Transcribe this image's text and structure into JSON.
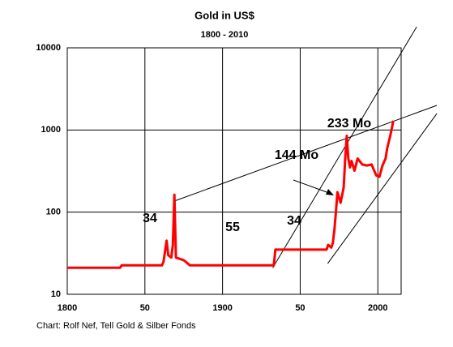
{
  "chart_data": {
    "type": "line",
    "title": "Gold in US$",
    "subtitle": "1800 - 2010",
    "source": "Chart: Rolf Nef, Tell Gold & Silber Fonds",
    "log_y": true,
    "grid": true,
    "xlim": [
      1800,
      2015
    ],
    "ylim": [
      10,
      10000
    ],
    "xticks": [
      1800,
      {
        "value": 1850,
        "label": "50"
      },
      1900,
      {
        "value": 1950,
        "label": "50"
      },
      2000
    ],
    "yticks": [
      10000,
      1000,
      100,
      10
    ],
    "x": [
      1800,
      1834,
      1835,
      1861,
      1862,
      1864,
      1865,
      1867,
      1868,
      1869,
      1870,
      1875,
      1879,
      1933,
      1934,
      1967,
      1968,
      1970,
      1971,
      1972,
      1973,
      1974,
      1976,
      1978,
      1979,
      1980,
      1981,
      1982,
      1983,
      1985,
      1987,
      1990,
      1993,
      1996,
      1999,
      2001,
      2003,
      2005,
      2006,
      2008,
      2010
    ],
    "series": [
      {
        "name": "Gold",
        "color": "#ff0000",
        "values": [
          21,
          21,
          22.5,
          22.5,
          25,
          45,
          30,
          28,
          40,
          163,
          28,
          26,
          22.5,
          22.5,
          35,
          35,
          40,
          37,
          42,
          60,
          100,
          175,
          130,
          200,
          450,
          850,
          450,
          350,
          420,
          320,
          450,
          380,
          370,
          380,
          280,
          270,
          370,
          450,
          600,
          850,
          1300
        ]
      }
    ],
    "trend_lines": [
      {
        "x": [
          1868.75,
          2038
        ],
        "y": [
          136,
          1991
        ]
      },
      {
        "x": [
          1932.3,
          2025
        ],
        "y": [
          21,
          18000
        ]
      },
      {
        "x": [
          1967.7,
          2038
        ],
        "y": [
          23.7,
          1585
        ]
      }
    ],
    "annotations": [
      "34",
      "55",
      "34",
      "144 Mo",
      "233 Mo"
    ]
  }
}
